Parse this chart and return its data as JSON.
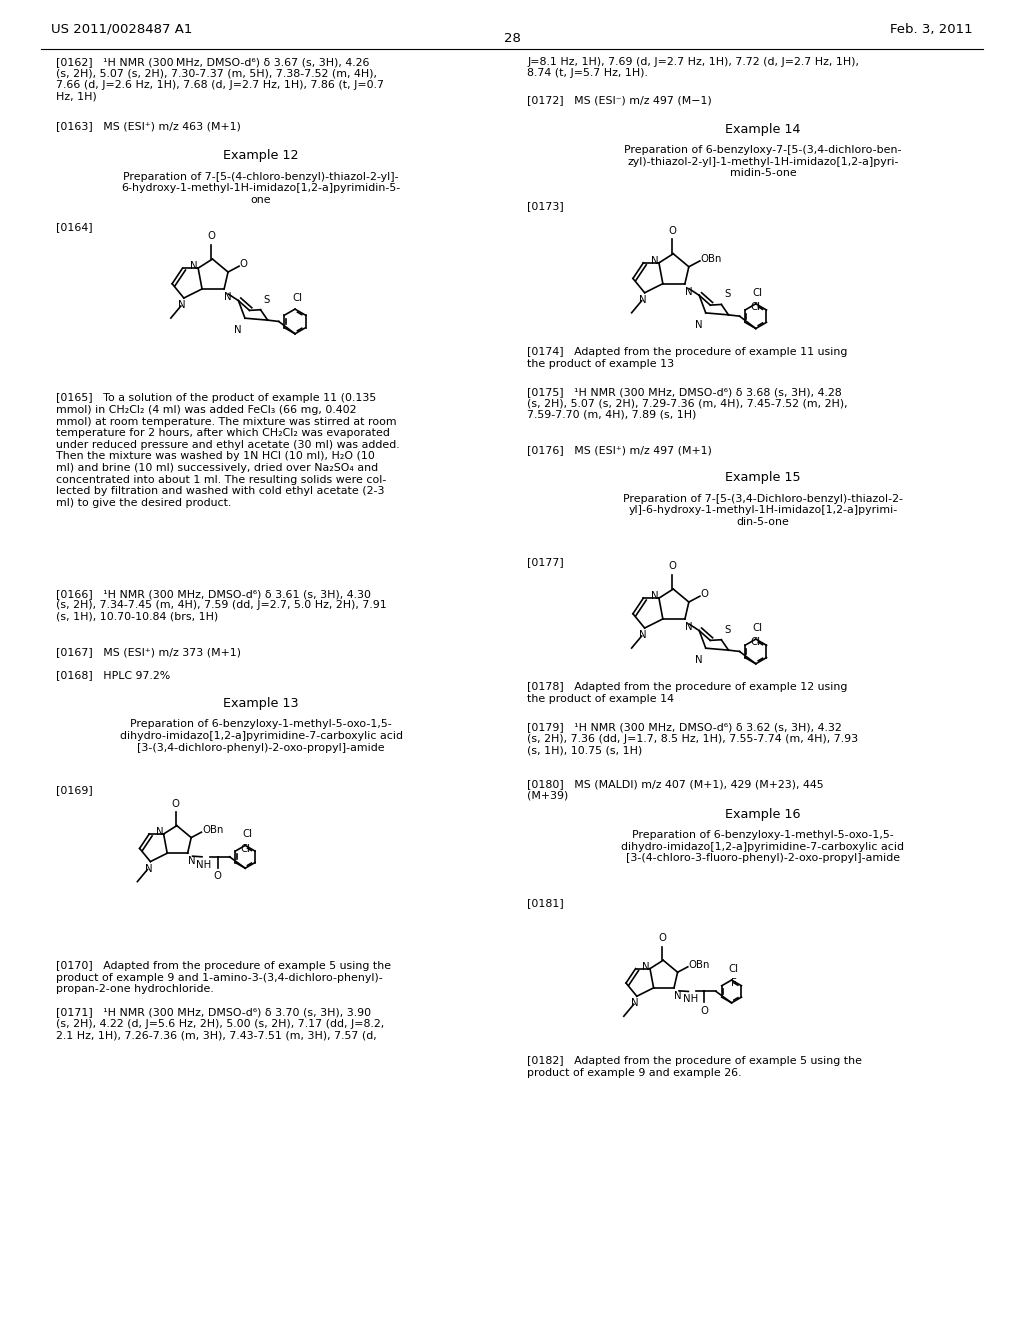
{
  "background_color": "#ffffff",
  "header_left": "US 2011/0028487 A1",
  "header_right": "Feb. 3, 2011",
  "page_number": "28"
}
